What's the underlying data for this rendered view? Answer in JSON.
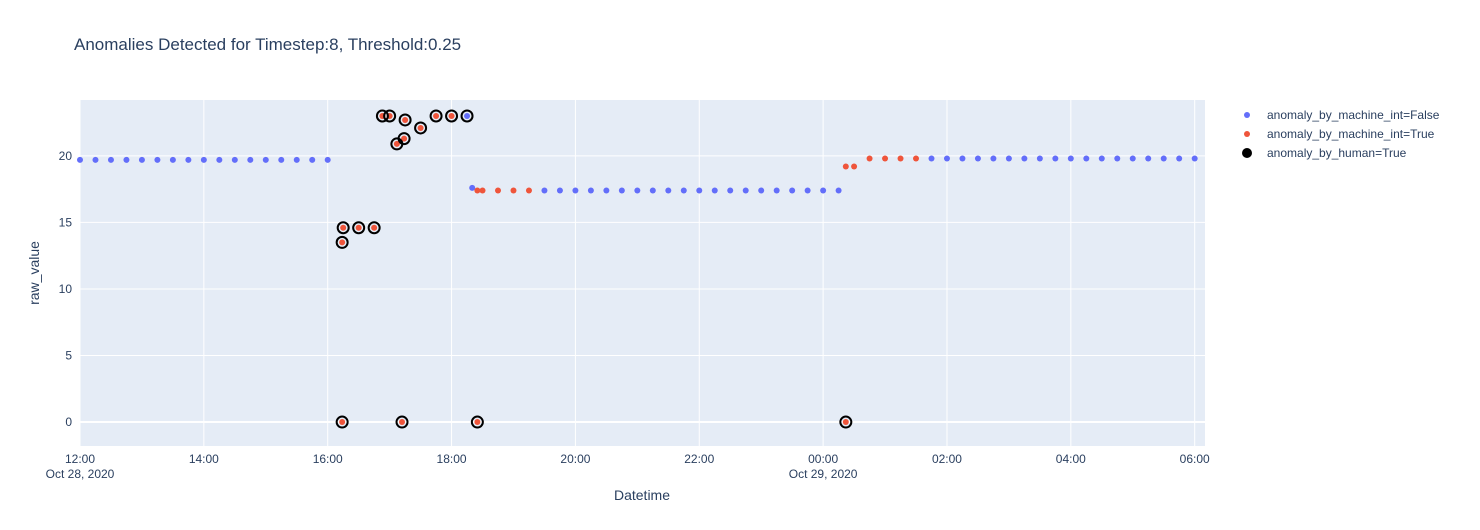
{
  "chart_data": {
    "type": "scatter",
    "title": "Anomalies Detected for Timestep:8, Threshold:0.25",
    "xlabel": "Datetime",
    "ylabel": "raw_value",
    "x_range": [
      "2020-10-28 12:00",
      "2020-10-29 06:10"
    ],
    "ylim": [
      -1.8,
      24.2
    ],
    "x_ticks": [
      {
        "t": "2020-10-28 12:00",
        "label": "12:00",
        "sub": "Oct 28, 2020"
      },
      {
        "t": "2020-10-28 14:00",
        "label": "14:00",
        "sub": ""
      },
      {
        "t": "2020-10-28 16:00",
        "label": "16:00",
        "sub": ""
      },
      {
        "t": "2020-10-28 18:00",
        "label": "18:00",
        "sub": ""
      },
      {
        "t": "2020-10-28 20:00",
        "label": "20:00",
        "sub": ""
      },
      {
        "t": "2020-10-28 22:00",
        "label": "22:00",
        "sub": ""
      },
      {
        "t": "2020-10-29 00:00",
        "label": "00:00",
        "sub": "Oct 29, 2020"
      },
      {
        "t": "2020-10-29 02:00",
        "label": "02:00",
        "sub": ""
      },
      {
        "t": "2020-10-29 04:00",
        "label": "04:00",
        "sub": ""
      },
      {
        "t": "2020-10-29 06:00",
        "label": "06:00",
        "sub": ""
      }
    ],
    "y_ticks": [
      0,
      5,
      10,
      15,
      20
    ],
    "grid": true,
    "legend_position": "top-right",
    "series": [
      {
        "name": "anomaly_by_machine_int=False",
        "color": "#636efa",
        "marker": "small-dot",
        "points": [
          [
            "2020-10-28 12:00",
            19.7
          ],
          [
            "2020-10-28 12:15",
            19.7
          ],
          [
            "2020-10-28 12:30",
            19.7
          ],
          [
            "2020-10-28 12:45",
            19.7
          ],
          [
            "2020-10-28 13:00",
            19.7
          ],
          [
            "2020-10-28 13:15",
            19.7
          ],
          [
            "2020-10-28 13:30",
            19.7
          ],
          [
            "2020-10-28 13:45",
            19.7
          ],
          [
            "2020-10-28 14:00",
            19.7
          ],
          [
            "2020-10-28 14:15",
            19.7
          ],
          [
            "2020-10-28 14:30",
            19.7
          ],
          [
            "2020-10-28 14:45",
            19.7
          ],
          [
            "2020-10-28 15:00",
            19.7
          ],
          [
            "2020-10-28 15:15",
            19.7
          ],
          [
            "2020-10-28 15:30",
            19.7
          ],
          [
            "2020-10-28 15:45",
            19.7
          ],
          [
            "2020-10-28 16:00",
            19.7
          ],
          [
            "2020-10-28 18:15",
            23.0
          ],
          [
            "2020-10-28 18:20",
            17.6
          ],
          [
            "2020-10-28 19:30",
            17.4
          ],
          [
            "2020-10-28 19:45",
            17.4
          ],
          [
            "2020-10-28 20:00",
            17.4
          ],
          [
            "2020-10-28 20:15",
            17.4
          ],
          [
            "2020-10-28 20:30",
            17.4
          ],
          [
            "2020-10-28 20:45",
            17.4
          ],
          [
            "2020-10-28 21:00",
            17.4
          ],
          [
            "2020-10-28 21:15",
            17.4
          ],
          [
            "2020-10-28 21:30",
            17.4
          ],
          [
            "2020-10-28 21:45",
            17.4
          ],
          [
            "2020-10-28 22:00",
            17.4
          ],
          [
            "2020-10-28 22:15",
            17.4
          ],
          [
            "2020-10-28 22:30",
            17.4
          ],
          [
            "2020-10-28 22:45",
            17.4
          ],
          [
            "2020-10-28 23:00",
            17.4
          ],
          [
            "2020-10-28 23:15",
            17.4
          ],
          [
            "2020-10-28 23:30",
            17.4
          ],
          [
            "2020-10-28 23:45",
            17.4
          ],
          [
            "2020-10-29 00:00",
            17.4
          ],
          [
            "2020-10-29 00:15",
            17.4
          ],
          [
            "2020-10-29 01:45",
            19.8
          ],
          [
            "2020-10-29 02:00",
            19.8
          ],
          [
            "2020-10-29 02:15",
            19.8
          ],
          [
            "2020-10-29 02:30",
            19.8
          ],
          [
            "2020-10-29 02:45",
            19.8
          ],
          [
            "2020-10-29 03:00",
            19.8
          ],
          [
            "2020-10-29 03:15",
            19.8
          ],
          [
            "2020-10-29 03:30",
            19.8
          ],
          [
            "2020-10-29 03:45",
            19.8
          ],
          [
            "2020-10-29 04:00",
            19.8
          ],
          [
            "2020-10-29 04:15",
            19.8
          ],
          [
            "2020-10-29 04:30",
            19.8
          ],
          [
            "2020-10-29 04:45",
            19.8
          ],
          [
            "2020-10-29 05:00",
            19.8
          ],
          [
            "2020-10-29 05:15",
            19.8
          ],
          [
            "2020-10-29 05:30",
            19.8
          ],
          [
            "2020-10-29 05:45",
            19.8
          ],
          [
            "2020-10-29 06:00",
            19.8
          ]
        ]
      },
      {
        "name": "anomaly_by_machine_int=True",
        "color": "#ef553b",
        "marker": "small-dot",
        "points": [
          [
            "2020-10-28 16:14",
            13.5
          ],
          [
            "2020-10-28 16:15",
            14.6
          ],
          [
            "2020-10-28 16:30",
            14.6
          ],
          [
            "2020-10-28 16:45",
            14.6
          ],
          [
            "2020-10-28 16:53",
            23.0
          ],
          [
            "2020-10-28 17:00",
            23.0
          ],
          [
            "2020-10-28 17:07",
            20.9
          ],
          [
            "2020-10-28 17:14",
            21.3
          ],
          [
            "2020-10-28 17:15",
            22.7
          ],
          [
            "2020-10-28 17:30",
            22.1
          ],
          [
            "2020-10-28 17:45",
            23.0
          ],
          [
            "2020-10-28 18:00",
            23.0
          ],
          [
            "2020-10-28 16:14",
            0
          ],
          [
            "2020-10-28 17:12",
            0
          ],
          [
            "2020-10-28 18:25",
            0
          ],
          [
            "2020-10-29 00:22",
            0
          ],
          [
            "2020-10-28 18:25",
            17.4
          ],
          [
            "2020-10-28 18:30",
            17.4
          ],
          [
            "2020-10-28 18:45",
            17.4
          ],
          [
            "2020-10-28 19:00",
            17.4
          ],
          [
            "2020-10-28 19:15",
            17.4
          ],
          [
            "2020-10-29 00:22",
            19.2
          ],
          [
            "2020-10-29 00:30",
            19.2
          ],
          [
            "2020-10-29 00:45",
            19.8
          ],
          [
            "2020-10-29 01:00",
            19.8
          ],
          [
            "2020-10-29 01:15",
            19.8
          ],
          [
            "2020-10-29 01:30",
            19.8
          ]
        ]
      },
      {
        "name": "anomaly_by_human=True",
        "color": "#000000",
        "marker": "ring",
        "points": [
          [
            "2020-10-28 16:14",
            13.5
          ],
          [
            "2020-10-28 16:15",
            14.6
          ],
          [
            "2020-10-28 16:30",
            14.6
          ],
          [
            "2020-10-28 16:45",
            14.6
          ],
          [
            "2020-10-28 16:53",
            23.0
          ],
          [
            "2020-10-28 17:00",
            23.0
          ],
          [
            "2020-10-28 17:07",
            20.9
          ],
          [
            "2020-10-28 17:14",
            21.3
          ],
          [
            "2020-10-28 17:15",
            22.7
          ],
          [
            "2020-10-28 17:30",
            22.1
          ],
          [
            "2020-10-28 17:45",
            23.0
          ],
          [
            "2020-10-28 18:00",
            23.0
          ],
          [
            "2020-10-28 18:15",
            23.0
          ],
          [
            "2020-10-28 16:14",
            0
          ],
          [
            "2020-10-28 17:12",
            0
          ],
          [
            "2020-10-28 18:25",
            0
          ],
          [
            "2020-10-29 00:22",
            0
          ]
        ]
      }
    ]
  }
}
